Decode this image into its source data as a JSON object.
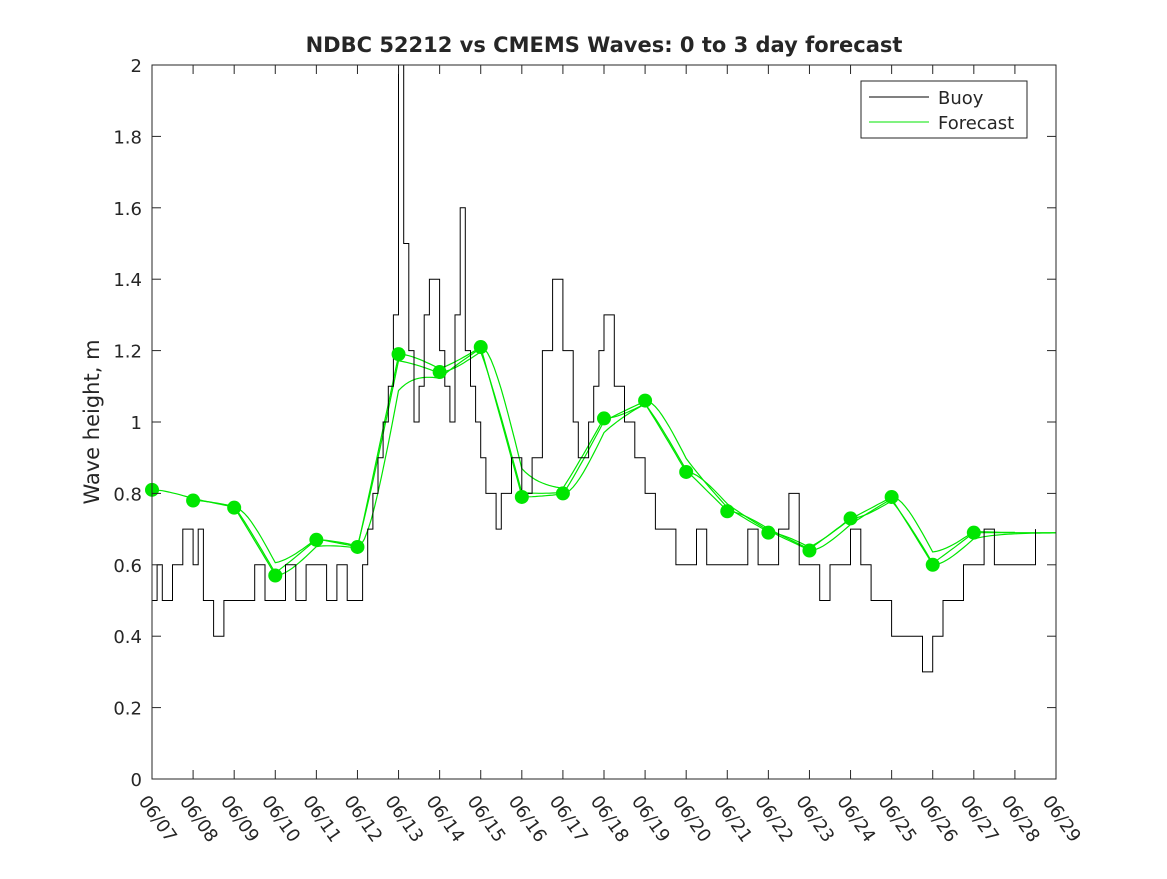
{
  "chart_data": {
    "type": "line",
    "title": "NDBC 52212 vs CMEMS Waves: 0 to 3 day forecast",
    "xlabel": "",
    "ylabel": "Wave height, m",
    "xlim": [
      "06/07",
      "06/29"
    ],
    "ylim": [
      0,
      2
    ],
    "x_ticks": [
      "06/07",
      "06/08",
      "06/09",
      "06/10",
      "06/11",
      "06/12",
      "06/13",
      "06/14",
      "06/15",
      "06/16",
      "06/17",
      "06/18",
      "06/19",
      "06/20",
      "06/21",
      "06/22",
      "06/23",
      "06/24",
      "06/25",
      "06/26",
      "06/27",
      "06/28",
      "06/29"
    ],
    "y_ticks": [
      "0",
      "0.2",
      "0.4",
      "0.6",
      "0.8",
      "1",
      "1.2",
      "1.4",
      "1.6",
      "1.8",
      "2"
    ],
    "grid": false,
    "legend": {
      "position": "top-right",
      "entries": [
        "Buoy",
        "Forecast"
      ]
    },
    "colors": {
      "buoy": "#000000",
      "forecast": "#00e600",
      "axes": "#262626"
    },
    "series": [
      {
        "name": "Buoy",
        "x": [
          "06/07 00:00",
          "06/07 03:00",
          "06/07 06:00",
          "06/07 12:00",
          "06/07 18:00",
          "06/08 00:00",
          "06/08 03:00",
          "06/08 06:00",
          "06/08 12:00",
          "06/08 18:00",
          "06/09 00:00",
          "06/09 06:00",
          "06/09 12:00",
          "06/09 18:00",
          "06/10 00:00",
          "06/10 06:00",
          "06/10 12:00",
          "06/10 18:00",
          "06/11 00:00",
          "06/11 06:00",
          "06/11 12:00",
          "06/11 18:00",
          "06/12 00:00",
          "06/12 03:00",
          "06/12 06:00",
          "06/12 09:00",
          "06/12 12:00",
          "06/12 15:00",
          "06/12 18:00",
          "06/12 21:00",
          "06/13 00:00",
          "06/13 03:00",
          "06/13 06:00",
          "06/13 09:00",
          "06/13 12:00",
          "06/13 15:00",
          "06/13 18:00",
          "06/14 00:00",
          "06/14 03:00",
          "06/14 06:00",
          "06/14 09:00",
          "06/14 12:00",
          "06/14 15:00",
          "06/14 18:00",
          "06/14 21:00",
          "06/15 00:00",
          "06/15 03:00",
          "06/15 06:00",
          "06/15 09:00",
          "06/15 12:00",
          "06/15 18:00",
          "06/16 00:00",
          "06/16 06:00",
          "06/16 12:00",
          "06/16 18:00",
          "06/17 00:00",
          "06/17 06:00",
          "06/17 09:00",
          "06/17 12:00",
          "06/17 15:00",
          "06/17 18:00",
          "06/17 21:00",
          "06/18 00:00",
          "06/18 06:00",
          "06/18 12:00",
          "06/18 18:00",
          "06/19 00:00",
          "06/19 03:00",
          "06/19 06:00",
          "06/19 12:00",
          "06/19 18:00",
          "06/20 00:00",
          "06/20 06:00",
          "06/20 12:00",
          "06/20 18:00",
          "06/21 00:00",
          "06/21 06:00",
          "06/21 12:00",
          "06/21 18:00",
          "06/22 00:00",
          "06/22 06:00",
          "06/22 12:00",
          "06/22 18:00",
          "06/23 00:00",
          "06/23 06:00",
          "06/23 12:00",
          "06/23 18:00",
          "06/24 00:00",
          "06/24 06:00",
          "06/24 12:00",
          "06/24 18:00",
          "06/25 00:00",
          "06/25 06:00",
          "06/25 12:00",
          "06/25 18:00",
          "06/26 00:00",
          "06/26 03:00",
          "06/26 06:00",
          "06/26 09:00",
          "06/26 12:00",
          "06/26 18:00",
          "06/27 00:00",
          "06/27 06:00",
          "06/27 12:00",
          "06/27 18:00",
          "06/28 00:00",
          "06/28 06:00",
          "06/28 12:00"
        ],
        "y": [
          0.5,
          0.6,
          0.5,
          0.6,
          0.7,
          0.6,
          0.7,
          0.5,
          0.4,
          0.5,
          0.5,
          0.5,
          0.6,
          0.5,
          0.5,
          0.6,
          0.5,
          0.6,
          0.6,
          0.5,
          0.6,
          0.5,
          0.5,
          0.6,
          0.7,
          0.8,
          0.9,
          1.0,
          1.1,
          1.3,
          2.0,
          1.5,
          1.2,
          1.0,
          1.1,
          1.3,
          1.4,
          1.2,
          1.1,
          1.0,
          1.3,
          1.6,
          1.2,
          1.1,
          1.0,
          0.9,
          0.8,
          0.8,
          0.7,
          0.8,
          0.9,
          0.8,
          0.9,
          1.2,
          1.4,
          1.2,
          1.0,
          0.9,
          0.9,
          1.0,
          1.1,
          1.2,
          1.3,
          1.1,
          1.0,
          0.9,
          0.8,
          0.8,
          0.7,
          0.7,
          0.6,
          0.6,
          0.7,
          0.6,
          0.6,
          0.6,
          0.6,
          0.7,
          0.6,
          0.6,
          0.7,
          0.8,
          0.6,
          0.6,
          0.5,
          0.6,
          0.6,
          0.7,
          0.6,
          0.5,
          0.5,
          0.4,
          0.4,
          0.4,
          0.3,
          0.4,
          0.4,
          0.5,
          0.5,
          0.5,
          0.6,
          0.6,
          0.7,
          0.6,
          0.6,
          0.6,
          0.6,
          0.7
        ]
      },
      {
        "name": "Forecast",
        "x": [
          "06/07",
          "06/08",
          "06/09",
          "06/10",
          "06/11",
          "06/12",
          "06/13",
          "06/14",
          "06/15",
          "06/16",
          "06/17",
          "06/18",
          "06/19",
          "06/20",
          "06/21",
          "06/22",
          "06/23",
          "06/24",
          "06/25",
          "06/26",
          "06/27"
        ],
        "y": [
          0.81,
          0.78,
          0.76,
          0.57,
          0.67,
          0.65,
          1.19,
          1.14,
          1.21,
          0.79,
          0.8,
          1.01,
          1.06,
          0.86,
          0.75,
          0.69,
          0.64,
          0.73,
          0.79,
          0.6,
          0.69
        ]
      }
    ]
  }
}
